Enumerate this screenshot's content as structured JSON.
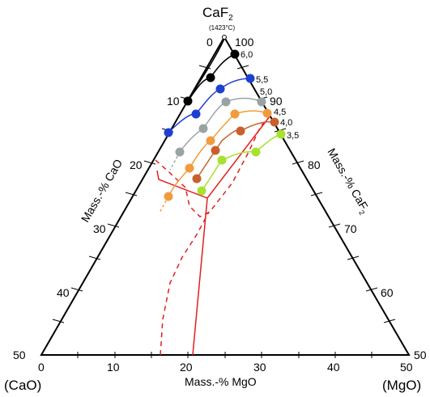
{
  "apex": {
    "top_label": "CaF",
    "top_label_sub": "2",
    "top_note": "(1423°C)",
    "left_label": "(CaO)",
    "right_label": "(MgO)"
  },
  "axes": {
    "bottom_title": "Mass.-% MgO",
    "left_title": "Mass.-% CaO",
    "right_title": "Mass.-% CaF",
    "right_title_sub": "2",
    "bottom_ticks": [
      "0",
      "10",
      "20",
      "30",
      "40",
      "50"
    ],
    "left_ticks": [
      "0",
      "10",
      "20",
      "30",
      "40",
      "50"
    ],
    "right_ticks": [
      "100",
      "90",
      "80",
      "70",
      "60",
      "50"
    ]
  },
  "isolines": [
    {
      "label": "6,0",
      "color": "#000000"
    },
    {
      "label": "5,5",
      "color": "#1f3fd1"
    },
    {
      "label": "5,0",
      "color": "#9aa3a3"
    },
    {
      "label": "4,5",
      "color": "#f29b3d"
    },
    {
      "label": "4,0",
      "color": "#c8602e"
    },
    {
      "label": "3,5",
      "color": "#a6e22e"
    }
  ],
  "colors": {
    "boundary": "#e02020",
    "frame": "#000000"
  }
}
